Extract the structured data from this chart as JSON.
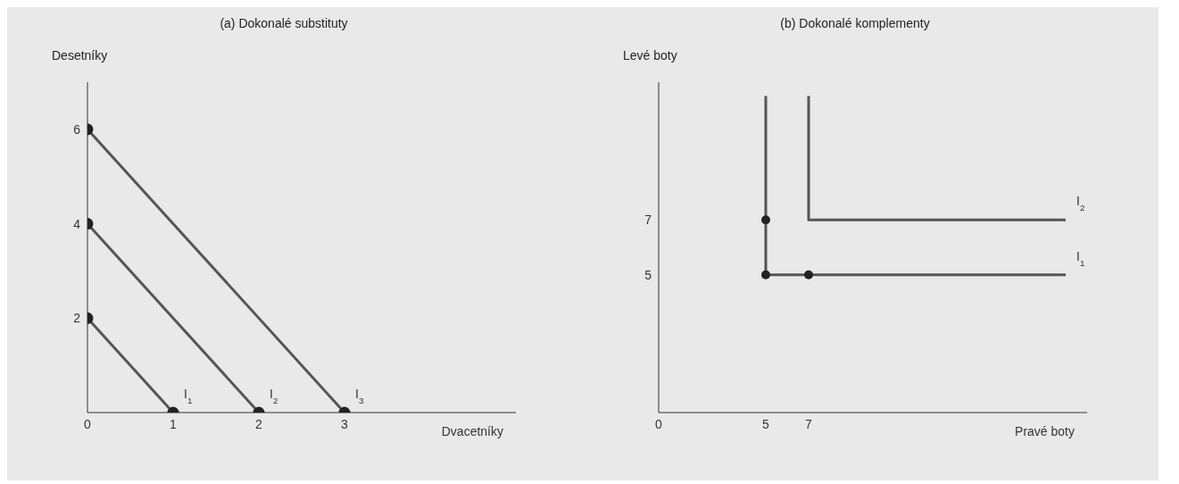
{
  "chart_data": [
    {
      "type": "line",
      "title": "(a) Dokonalé substituty",
      "xlabel": "Dvacetníky",
      "ylabel": "Desetníky",
      "xlim": [
        0,
        5
      ],
      "ylim": [
        0,
        7
      ],
      "xticks": [
        0,
        1,
        2,
        3
      ],
      "yticks": [
        2,
        4,
        6
      ],
      "grid": false,
      "legend": false,
      "marker": "circle",
      "line_style": "solid",
      "series": [
        {
          "name": "I$_{1}$",
          "color": "#555555",
          "x": [
            0,
            1
          ],
          "values": [
            2,
            0
          ]
        },
        {
          "name": "I$_{2}$",
          "color": "#555555",
          "x": [
            0,
            2
          ],
          "values": [
            4,
            0
          ]
        },
        {
          "name": "I$_{3}$",
          "color": "#555555",
          "x": [
            0,
            3
          ],
          "values": [
            6,
            0
          ]
        }
      ]
    },
    {
      "type": "line",
      "title": "(b) Dokonalé komplementy",
      "xlabel": "Pravé boty",
      "ylabel": "Levé boty",
      "xlim": [
        0,
        20
      ],
      "ylim": [
        0,
        12
      ],
      "xticks": [
        0,
        5,
        7
      ],
      "yticks": [
        5,
        7
      ],
      "grid": false,
      "legend": false,
      "marker": "none",
      "line_style": "solid",
      "series": [
        {
          "name": "I$_{1}$",
          "color": "#555555",
          "x": [
            5,
            5,
            19
          ],
          "values": [
            11.5,
            5,
            5
          ]
        },
        {
          "name": "I$_{2}$",
          "color": "#555555",
          "x": [
            7,
            7,
            19
          ],
          "values": [
            11.5,
            7,
            7
          ]
        },
        {
          "type": "scatter",
          "marker": "circle",
          "color": "#222222",
          "x": [
            5,
            5,
            7
          ],
          "values": [
            7,
            5,
            5
          ]
        }
      ]
    }
  ]
}
